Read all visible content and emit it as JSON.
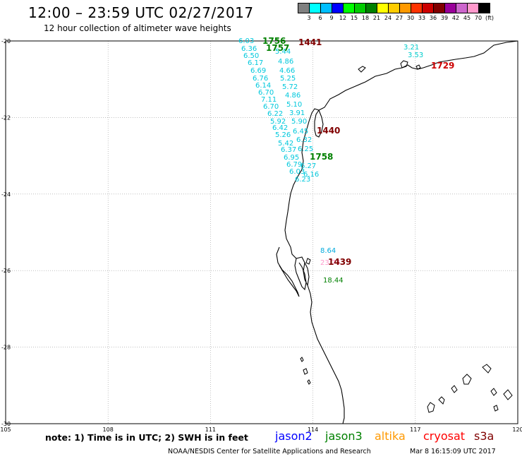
{
  "header": {
    "title": "12:00 – 23:59 UTC 02/27/2017",
    "subtitle": "12 hour collection of altimeter wave heights"
  },
  "scale": {
    "colors": [
      "#808080",
      "#00ffff",
      "#00bfff",
      "#0000ff",
      "#00ff00",
      "#00cc00",
      "#008000",
      "#ffff00",
      "#ffcc00",
      "#ff9900",
      "#ff3300",
      "#cc0000",
      "#800000",
      "#990099",
      "#cc66cc",
      "#ff99cc",
      "#000000"
    ],
    "labels": [
      "3",
      "6",
      "9",
      "12",
      "15",
      "18",
      "21",
      "24",
      "27",
      "30",
      "33",
      "36",
      "39",
      "42",
      "45",
      "70"
    ],
    "unit": "(ft)"
  },
  "map": {
    "lon_ticks": [
      "105",
      "108",
      "111",
      "114",
      "117",
      "120"
    ],
    "lat_ticks": [
      "-20",
      "-22",
      "-24",
      "-26",
      "-28",
      "-30"
    ],
    "lon_range": [
      105,
      120
    ],
    "lat_range": [
      -30,
      -20
    ]
  },
  "pass_labels": [
    {
      "text": "1756",
      "color": "#008000"
    },
    {
      "text": "1757",
      "color": "#008000"
    },
    {
      "text": "1441",
      "color": "#800000"
    },
    {
      "text": "1729",
      "color": "#cc0000"
    },
    {
      "text": "1440",
      "color": "#800000"
    },
    {
      "text": "1758",
      "color": "#008000"
    },
    {
      "text": "1439",
      "color": "#800000"
    }
  ],
  "wave_track_values": [
    "6.03",
    "6.36",
    "5.44",
    "6.50",
    "4.86",
    "6.17",
    "4.66",
    "6.69",
    "5.25",
    "6.76",
    "5.72",
    "6.14",
    "6.70",
    "4.86",
    "7.11",
    "5.10",
    "6.70",
    "3.91",
    "6.22",
    "5.90",
    "5.92",
    "6.45",
    "6.42",
    "6.32",
    "5.26",
    "5.42",
    "6.25",
    "6.37",
    "6.95",
    "6.79",
    "6.27",
    "6.03",
    "6.16",
    "6.23"
  ],
  "other_values": [
    {
      "text": "3.21",
      "color": "#00cccc"
    },
    {
      "text": "3.53",
      "color": "#00cccc"
    },
    {
      "text": "8.64",
      "color": "#00aadd"
    },
    {
      "text": "23.74",
      "color": "#ff99cc"
    },
    {
      "text": "18.44",
      "color": "#008000"
    }
  ],
  "note": "note: 1) Time is in UTC; 2) SWH is in feet",
  "satellites": [
    {
      "name": "jason2",
      "color": "#0000ff"
    },
    {
      "name": "jason3",
      "color": "#008000"
    },
    {
      "name": "altika",
      "color": "#ff9900"
    },
    {
      "name": "cryosat",
      "color": "#ff0000"
    },
    {
      "name": "s3a",
      "color": "#800000"
    }
  ],
  "footer": {
    "credit": "NOAA/NESDIS Center for Satellite Applications and Research",
    "timestamp": "Mar  8 16:15:09 UTC 2017"
  }
}
